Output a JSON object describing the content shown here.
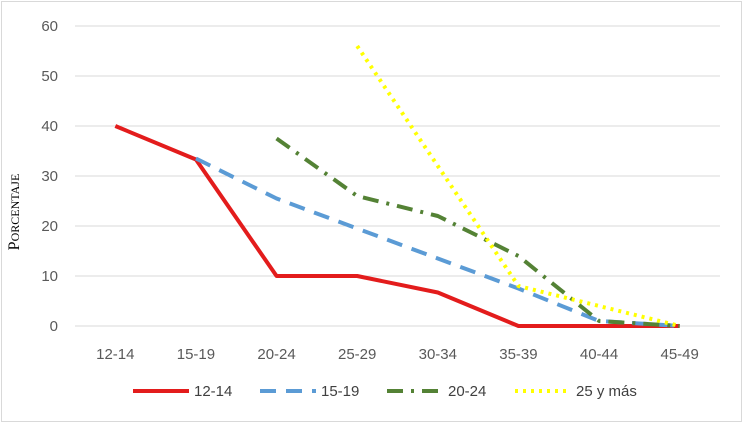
{
  "chart_data": {
    "type": "line",
    "categories": [
      "12-14",
      "15-19",
      "20-24",
      "25-29",
      "30-34",
      "35-39",
      "40-44",
      "45-49"
    ],
    "ylabel": "Porcentaje",
    "ylim": [
      0,
      60
    ],
    "yticks": [
      "0",
      "10",
      "20",
      "30",
      "40",
      "50",
      "60"
    ],
    "grid": true,
    "legend_position": "bottom",
    "series": [
      {
        "name": "12-14",
        "color": "#e31c1c",
        "style": "solid",
        "values": [
          40,
          33.3,
          10,
          10,
          6.7,
          0,
          0,
          0
        ]
      },
      {
        "name": "15-19",
        "color": "#5b9bd5",
        "style": "dashed",
        "values": [
          null,
          33.5,
          25.5,
          19.5,
          13.5,
          7.5,
          1,
          0
        ]
      },
      {
        "name": "20-24",
        "color": "#548235",
        "style": "dash-dot",
        "values": [
          null,
          null,
          37.5,
          26,
          22,
          14,
          1,
          0
        ]
      },
      {
        "name": "25 y más",
        "color": "#ffff00",
        "style": "dotted",
        "values": [
          null,
          null,
          null,
          56,
          32,
          8,
          4,
          0
        ]
      }
    ]
  }
}
